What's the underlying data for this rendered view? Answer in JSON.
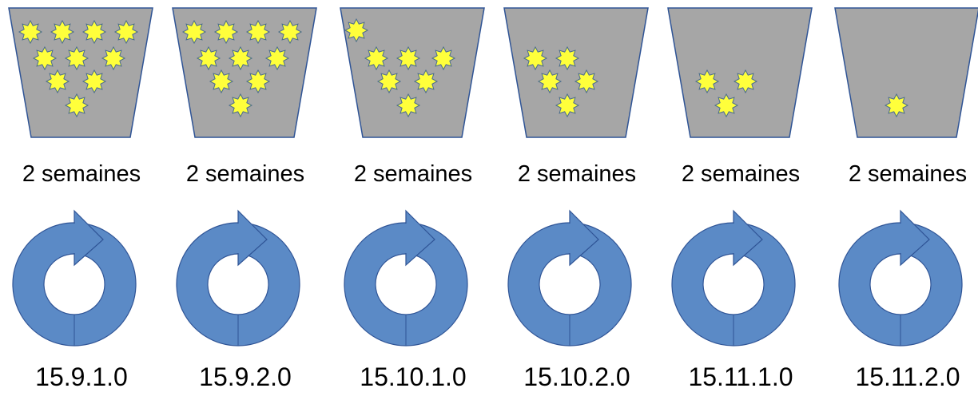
{
  "colors": {
    "bucket_fill": "#a6a6a6",
    "bucket_stroke": "#2f5496",
    "star_fill": "#ffff3b",
    "star_stroke": "#4a6d8c",
    "cycle_fill": "#5b8ac6",
    "cycle_stroke": "#2f5496"
  },
  "iterations": [
    {
      "duration": "2 semaines",
      "version": "15.9.1.0",
      "items_remaining": 10
    },
    {
      "duration": "2 semaines",
      "version": "15.9.2.0",
      "items_remaining": 10
    },
    {
      "duration": "2 semaines",
      "version": "15.10.1.0",
      "items_remaining": 7
    },
    {
      "duration": "2 semaines",
      "version": "15.10.2.0",
      "items_remaining": 5
    },
    {
      "duration": "2 semaines",
      "version": "15.11.1.0",
      "items_remaining": 3
    },
    {
      "duration": "2 semaines",
      "version": "15.11.2.0",
      "items_remaining": 1
    }
  ],
  "icons": {
    "bucket": "bucket-icon",
    "star": "star-icon",
    "cycle": "refresh-cycle-icon"
  }
}
